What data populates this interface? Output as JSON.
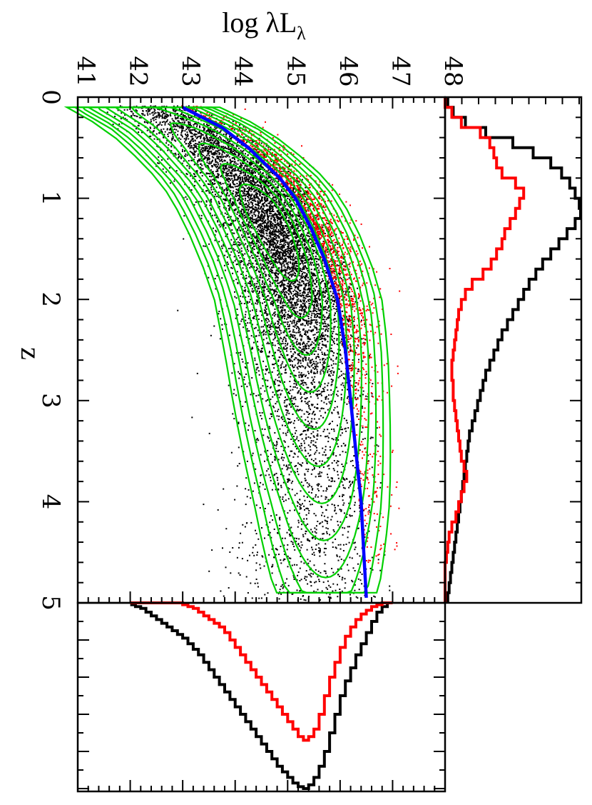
{
  "chart_data": {
    "type": "scatter",
    "orientation": "rotated-90-clockwise",
    "xlabel": "z",
    "ylabel": "log λL",
    "ylabel_subscript": "λ",
    "xlim": [
      0,
      5
    ],
    "ylim": [
      41,
      48
    ],
    "x_ticks": [
      "0",
      "1",
      "2",
      "3",
      "4",
      "5"
    ],
    "y_ticks": [
      "41",
      "42",
      "43",
      "44",
      "45",
      "46",
      "47",
      "48"
    ],
    "colors": {
      "all_points": "#000000",
      "selected_points": "#ff0000",
      "contours": "#00d000",
      "fit_curve": "#0000ff"
    },
    "series": [
      {
        "style": "fit-line",
        "color": "#0000ff",
        "x": [
          0.1,
          0.3,
          0.5,
          0.8,
          1.0,
          1.3,
          1.6,
          2.0,
          2.5,
          3.0,
          3.5,
          4.0,
          4.5,
          4.95
        ],
        "y": [
          43.0,
          43.75,
          44.25,
          44.85,
          45.15,
          45.45,
          45.7,
          45.95,
          46.1,
          46.2,
          46.3,
          46.4,
          46.45,
          46.5
        ]
      }
    ],
    "contours": {
      "color": "#00d000",
      "center": {
        "z": 1.2,
        "logL": 44.7
      },
      "levels": 12
    },
    "marginal_z": {
      "bin_width": 0.1,
      "black": [
        0.02,
        0.06,
        0.15,
        0.3,
        0.5,
        0.65,
        0.78,
        0.86,
        0.92,
        0.96,
        0.99,
        1.0,
        0.96,
        0.9,
        0.84,
        0.78,
        0.72,
        0.67,
        0.62,
        0.58,
        0.54,
        0.5,
        0.46,
        0.42,
        0.39,
        0.36,
        0.33,
        0.3,
        0.28,
        0.26,
        0.24,
        0.22,
        0.2,
        0.18,
        0.17,
        0.16,
        0.15,
        0.14,
        0.13,
        0.12,
        0.11,
        0.1,
        0.09,
        0.08,
        0.07,
        0.06,
        0.05,
        0.04,
        0.03,
        0.02
      ],
      "red": [
        0.0,
        0.05,
        0.12,
        0.26,
        0.33,
        0.36,
        0.38,
        0.42,
        0.52,
        0.58,
        0.55,
        0.52,
        0.48,
        0.44,
        0.42,
        0.38,
        0.34,
        0.28,
        0.2,
        0.15,
        0.12,
        0.1,
        0.09,
        0.08,
        0.07,
        0.06,
        0.05,
        0.05,
        0.06,
        0.06,
        0.07,
        0.08,
        0.09,
        0.1,
        0.11,
        0.12,
        0.14,
        0.16,
        0.14,
        0.12,
        0.1,
        0.08,
        0.05,
        0.03,
        0.02,
        0.01,
        0.0,
        0.0,
        0.0,
        0.0
      ]
    },
    "marginal_logL": {
      "bin_width": 0.1,
      "y_start": 42.0,
      "black": [
        0.01,
        0.02,
        0.03,
        0.05,
        0.07,
        0.09,
        0.11,
        0.13,
        0.15,
        0.17,
        0.19,
        0.22,
        0.25,
        0.28,
        0.32,
        0.36,
        0.4,
        0.44,
        0.48,
        0.52,
        0.56,
        0.6,
        0.64,
        0.68,
        0.72,
        0.76,
        0.8,
        0.84,
        0.88,
        0.91,
        0.94,
        0.97,
        0.99,
        1.0,
        0.98,
        0.94,
        0.88,
        0.8,
        0.7,
        0.6,
        0.5,
        0.42,
        0.35,
        0.28,
        0.22,
        0.16,
        0.1,
        0.05,
        0.02,
        0.0
      ],
      "red": [
        0.0,
        0.0,
        0.0,
        0.0,
        0.0,
        0.0,
        0.0,
        0.0,
        0.0,
        0.0,
        0.01,
        0.02,
        0.03,
        0.05,
        0.07,
        0.09,
        0.11,
        0.13,
        0.16,
        0.2,
        0.24,
        0.28,
        0.32,
        0.36,
        0.4,
        0.44,
        0.48,
        0.52,
        0.56,
        0.6,
        0.64,
        0.68,
        0.72,
        0.74,
        0.72,
        0.68,
        0.6,
        0.5,
        0.4,
        0.32,
        0.24,
        0.18,
        0.13,
        0.09,
        0.06,
        0.04,
        0.02,
        0.01,
        0.0,
        0.0
      ]
    }
  }
}
